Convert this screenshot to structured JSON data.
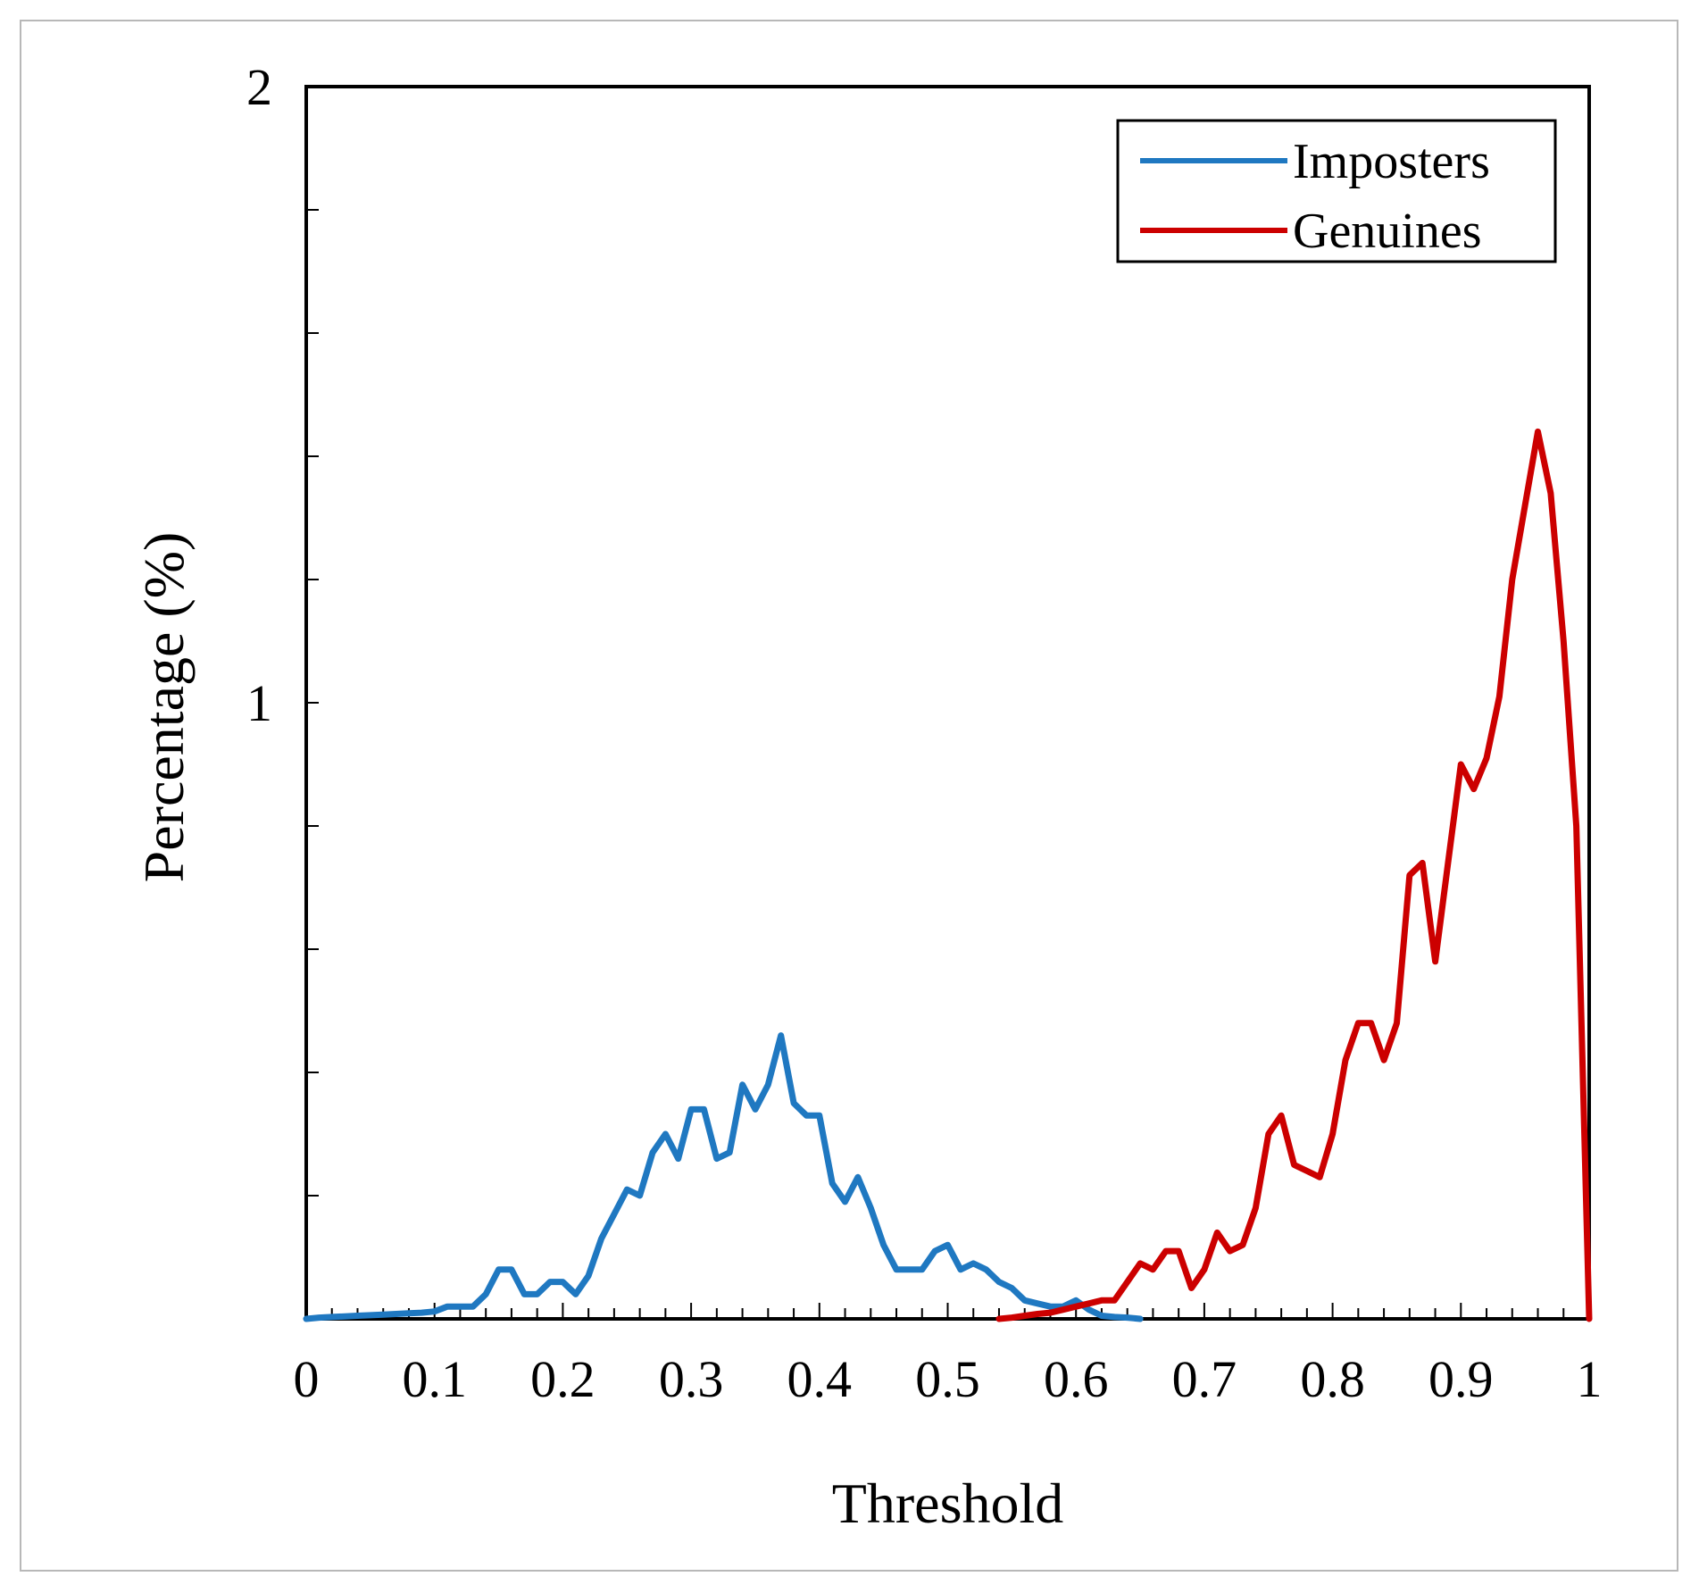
{
  "chart_data": {
    "type": "line",
    "title": "",
    "xlabel": "Threshold",
    "ylabel": "Percentage (%)",
    "xlim": [
      0,
      1
    ],
    "ylim": [
      0,
      2
    ],
    "x_ticks": [
      "0",
      "0.1",
      "0.2",
      "0.3",
      "0.4",
      "0.5",
      "0.6",
      "0.7",
      "0.8",
      "0.9",
      "1"
    ],
    "y_ticks": [
      "1",
      "2"
    ],
    "grid": false,
    "legend": "top-right",
    "series": [
      {
        "name": "Imposters",
        "color": "#1f78c1",
        "x": [
          0,
          0.01,
          0.02,
          0.03,
          0.04,
          0.05,
          0.06,
          0.07,
          0.08,
          0.09,
          0.1,
          0.11,
          0.12,
          0.13,
          0.14,
          0.15,
          0.16,
          0.17,
          0.18,
          0.19,
          0.2,
          0.21,
          0.22,
          0.23,
          0.24,
          0.25,
          0.26,
          0.27,
          0.28,
          0.29,
          0.3,
          0.31,
          0.32,
          0.33,
          0.34,
          0.35,
          0.36,
          0.37,
          0.38,
          0.39,
          0.4,
          0.41,
          0.42,
          0.43,
          0.44,
          0.45,
          0.46,
          0.47,
          0.48,
          0.49,
          0.5,
          0.51,
          0.52,
          0.53,
          0.54,
          0.55,
          0.56,
          0.57,
          0.58,
          0.59,
          0.6,
          0.61,
          0.62,
          0.63,
          0.64,
          0.65
        ],
        "y": [
          0.0,
          0.002,
          0.003,
          0.004,
          0.005,
          0.006,
          0.007,
          0.008,
          0.009,
          0.01,
          0.012,
          0.02,
          0.02,
          0.02,
          0.04,
          0.08,
          0.08,
          0.04,
          0.04,
          0.06,
          0.06,
          0.04,
          0.07,
          0.13,
          0.17,
          0.21,
          0.2,
          0.27,
          0.3,
          0.26,
          0.34,
          0.34,
          0.26,
          0.27,
          0.38,
          0.34,
          0.38,
          0.46,
          0.35,
          0.33,
          0.33,
          0.22,
          0.19,
          0.23,
          0.18,
          0.12,
          0.08,
          0.08,
          0.08,
          0.11,
          0.12,
          0.08,
          0.09,
          0.08,
          0.06,
          0.05,
          0.03,
          0.025,
          0.02,
          0.02,
          0.03,
          0.015,
          0.005,
          0.003,
          0.002,
          0.0
        ]
      },
      {
        "name": "Genuines",
        "color": "#cc0000",
        "x": [
          0.54,
          0.55,
          0.56,
          0.57,
          0.58,
          0.59,
          0.6,
          0.61,
          0.62,
          0.63,
          0.64,
          0.65,
          0.66,
          0.67,
          0.68,
          0.69,
          0.7,
          0.71,
          0.72,
          0.73,
          0.74,
          0.75,
          0.76,
          0.77,
          0.78,
          0.79,
          0.8,
          0.81,
          0.82,
          0.83,
          0.84,
          0.85,
          0.86,
          0.87,
          0.88,
          0.89,
          0.9,
          0.91,
          0.92,
          0.93,
          0.94,
          0.95,
          0.96,
          0.97,
          0.98,
          0.99,
          1.0
        ],
        "y": [
          0.0,
          0.002,
          0.005,
          0.008,
          0.01,
          0.015,
          0.02,
          0.025,
          0.03,
          0.03,
          0.06,
          0.09,
          0.08,
          0.11,
          0.11,
          0.05,
          0.08,
          0.14,
          0.11,
          0.12,
          0.18,
          0.3,
          0.33,
          0.25,
          0.24,
          0.23,
          0.3,
          0.42,
          0.48,
          0.48,
          0.42,
          0.48,
          0.72,
          0.74,
          0.58,
          0.74,
          0.9,
          0.86,
          0.91,
          1.01,
          1.2,
          1.32,
          1.44,
          1.34,
          1.1,
          0.8,
          0.0
        ]
      }
    ]
  }
}
